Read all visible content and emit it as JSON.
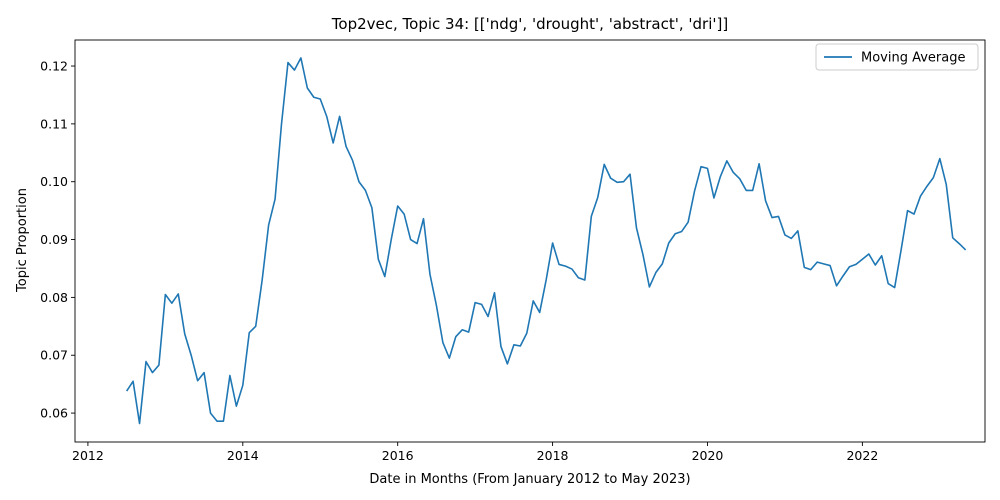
{
  "chart_data": {
    "type": "line",
    "title": "Top2vec, Topic 34: [['ndg', 'drought', 'abstract', 'dri']]",
    "xlabel": "Date in Months (From January 2012 to May 2023)",
    "ylabel": "Topic Proportion",
    "xlim": [
      "2011-11",
      "2023-08"
    ],
    "ylim": [
      0.055,
      0.1245
    ],
    "x_ticks": [
      "2012",
      "2014",
      "2016",
      "2018",
      "2020",
      "2022"
    ],
    "y_ticks": [
      "0.06",
      "0.07",
      "0.08",
      "0.09",
      "0.10",
      "0.11",
      "0.12"
    ],
    "legend": {
      "position": "upper right"
    },
    "grid": false,
    "series": [
      {
        "name": "Moving Average",
        "color": "#1f77b4",
        "x": [
          "2012-07",
          "2012-08",
          "2012-09",
          "2012-10",
          "2012-11",
          "2012-12",
          "2013-01",
          "2013-02",
          "2013-03",
          "2013-04",
          "2013-05",
          "2013-06",
          "2013-07",
          "2013-08",
          "2013-09",
          "2013-10",
          "2013-11",
          "2013-12",
          "2014-01",
          "2014-02",
          "2014-03",
          "2014-04",
          "2014-05",
          "2014-06",
          "2014-07",
          "2014-08",
          "2014-09",
          "2014-10",
          "2014-11",
          "2014-12",
          "2015-01",
          "2015-02",
          "2015-03",
          "2015-04",
          "2015-05",
          "2015-06",
          "2015-07",
          "2015-08",
          "2015-09",
          "2015-10",
          "2015-11",
          "2015-12",
          "2016-01",
          "2016-02",
          "2016-03",
          "2016-04",
          "2016-05",
          "2016-06",
          "2016-07",
          "2016-08",
          "2016-09",
          "2016-10",
          "2016-11",
          "2016-12",
          "2017-01",
          "2017-02",
          "2017-03",
          "2017-04",
          "2017-05",
          "2017-06",
          "2017-07",
          "2017-08",
          "2017-09",
          "2017-10",
          "2017-11",
          "2017-12",
          "2018-01",
          "2018-02",
          "2018-03",
          "2018-04",
          "2018-05",
          "2018-06",
          "2018-07",
          "2018-08",
          "2018-09",
          "2018-10",
          "2018-11",
          "2018-12",
          "2019-01",
          "2019-02",
          "2019-03",
          "2019-04",
          "2019-05",
          "2019-06",
          "2019-07",
          "2019-08",
          "2019-09",
          "2019-10",
          "2019-11",
          "2019-12",
          "2020-01",
          "2020-02",
          "2020-03",
          "2020-04",
          "2020-05",
          "2020-06",
          "2020-07",
          "2020-08",
          "2020-09",
          "2020-10",
          "2020-11",
          "2020-12",
          "2021-01",
          "2021-02",
          "2021-03",
          "2021-04",
          "2021-05",
          "2021-06",
          "2021-07",
          "2021-08",
          "2021-09",
          "2021-10",
          "2021-11",
          "2021-12",
          "2022-01",
          "2022-02",
          "2022-03",
          "2022-04",
          "2022-05",
          "2022-06",
          "2022-07",
          "2022-08",
          "2022-09",
          "2022-10",
          "2022-11",
          "2022-12",
          "2023-01",
          "2023-02",
          "2023-03",
          "2023-04",
          "2023-05"
        ],
        "y": [
          0.0638,
          0.0655,
          0.0582,
          0.0689,
          0.067,
          0.0683,
          0.0805,
          0.079,
          0.0806,
          0.0737,
          0.07,
          0.0656,
          0.067,
          0.06,
          0.0586,
          0.0586,
          0.0665,
          0.0612,
          0.0648,
          0.0739,
          0.075,
          0.083,
          0.0925,
          0.097,
          0.11,
          0.1206,
          0.1193,
          0.1214,
          0.1162,
          0.1146,
          0.1143,
          0.1113,
          0.1067,
          0.1113,
          0.1061,
          0.1037,
          0.1,
          0.0985,
          0.0955,
          0.0866,
          0.0836,
          0.09,
          0.0958,
          0.0944,
          0.09,
          0.0893,
          0.0936,
          0.084,
          0.0786,
          0.0722,
          0.0695,
          0.0732,
          0.0744,
          0.074,
          0.0791,
          0.0788,
          0.0767,
          0.0808,
          0.0715,
          0.0685,
          0.0718,
          0.0716,
          0.0738,
          0.0794,
          0.0774,
          0.083,
          0.0894,
          0.0857,
          0.0854,
          0.0849,
          0.0834,
          0.083,
          0.094,
          0.0973,
          0.103,
          0.1006,
          0.0999,
          0.1,
          0.1013,
          0.092,
          0.0874,
          0.0818,
          0.0843,
          0.0858,
          0.0894,
          0.091,
          0.0914,
          0.093,
          0.0984,
          0.1026,
          0.1023,
          0.0972,
          0.1009,
          0.1036,
          0.1016,
          0.1005,
          0.0985,
          0.0985,
          0.1031,
          0.0967,
          0.0938,
          0.094,
          0.0908,
          0.0902,
          0.0915,
          0.0852,
          0.0848,
          0.0861,
          0.0858,
          0.0855,
          0.082,
          0.0837,
          0.0853,
          0.0857,
          0.0866,
          0.0875,
          0.0856,
          0.0872,
          0.0824,
          0.0817,
          0.0882,
          0.095,
          0.0944,
          0.0975,
          0.0992,
          0.1007,
          0.104,
          0.0995,
          0.0903,
          0.0893,
          0.0882
        ]
      }
    ]
  }
}
